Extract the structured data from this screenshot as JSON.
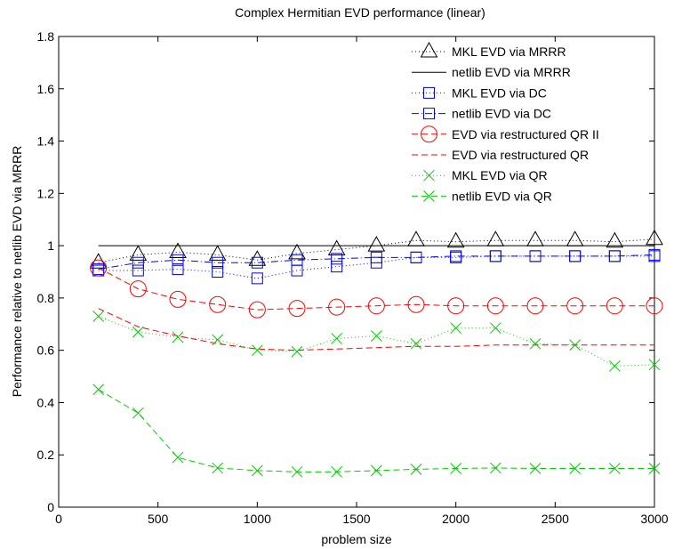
{
  "chart_data": {
    "type": "line",
    "title": "Complex Hermitian EVD performance (linear)",
    "xlabel": "problem size",
    "ylabel": "Performance relative to netlib EVD via MRRR",
    "xlim": [
      0,
      3000
    ],
    "ylim": [
      0,
      1.8
    ],
    "xticks": [
      0,
      500,
      1000,
      1500,
      2000,
      2500,
      3000
    ],
    "yticks": [
      0,
      0.2,
      0.4,
      0.6,
      0.8,
      1,
      1.2,
      1.4,
      1.6,
      1.8
    ],
    "xtick_labels": [
      "0",
      "500",
      "1000",
      "1500",
      "2000",
      "2500",
      "3000"
    ],
    "ytick_labels": [
      "0",
      "0.2",
      "0.4",
      "0.6",
      "0.8",
      "1",
      "1.2",
      "1.4",
      "1.6",
      "1.8"
    ],
    "grid": false,
    "legend_position": "top-right",
    "x": [
      200,
      400,
      600,
      800,
      1000,
      1200,
      1400,
      1600,
      1800,
      2000,
      2200,
      2400,
      2600,
      2800,
      3000
    ],
    "series": [
      {
        "name": "MKL EVD via MRRR",
        "color": "#000000",
        "line": "dotted",
        "marker": "triangle",
        "values": [
          0.935,
          0.965,
          0.975,
          0.965,
          0.945,
          0.97,
          0.985,
          1.0,
          1.02,
          1.015,
          1.02,
          1.02,
          1.02,
          1.015,
          1.025
        ]
      },
      {
        "name": "netlib EVD via MRRR",
        "color": "#000000",
        "line": "solid",
        "marker": "none",
        "values": [
          1,
          1,
          1,
          1,
          1,
          1,
          1,
          1,
          1,
          1,
          1,
          1,
          1,
          1,
          1
        ]
      },
      {
        "name": "MKL EVD via DC",
        "color": "#0000ff",
        "line": "dotted",
        "marker": "square",
        "values": [
          0.905,
          0.905,
          0.91,
          0.9,
          0.875,
          0.905,
          0.92,
          0.935,
          0.955,
          0.955,
          0.96,
          0.96,
          0.96,
          0.96,
          0.96
        ]
      },
      {
        "name": "netlib EVD via DC",
        "color": "#0000ff",
        "line": "dashdot",
        "marker": "square",
        "values": [
          0.91,
          0.935,
          0.945,
          0.935,
          0.935,
          0.945,
          0.95,
          0.955,
          0.955,
          0.96,
          0.96,
          0.96,
          0.96,
          0.96,
          0.965
        ]
      },
      {
        "name": "EVD via restructured QR II",
        "color": "#ff0000",
        "line": "dashed",
        "marker": "circle",
        "values": [
          0.915,
          0.835,
          0.795,
          0.775,
          0.755,
          0.76,
          0.765,
          0.77,
          0.775,
          0.77,
          0.77,
          0.77,
          0.77,
          0.77,
          0.77
        ]
      },
      {
        "name": "EVD via restructured QR",
        "color": "#ff0000",
        "line": "dashed",
        "marker": "none",
        "values": [
          0.76,
          0.69,
          0.655,
          0.625,
          0.605,
          0.6,
          0.605,
          0.61,
          0.615,
          0.615,
          0.62,
          0.62,
          0.62,
          0.62,
          0.62
        ]
      },
      {
        "name": "MKL EVD via QR",
        "color": "#00cc00",
        "line": "dotted",
        "marker": "x",
        "values": [
          0.73,
          0.67,
          0.65,
          0.64,
          0.6,
          0.595,
          0.645,
          0.655,
          0.625,
          0.685,
          0.685,
          0.625,
          0.62,
          0.54,
          0.545
        ]
      },
      {
        "name": "netlib EVD via QR",
        "color": "#00cc00",
        "line": "dashed",
        "marker": "x",
        "values": [
          0.45,
          0.36,
          0.19,
          0.15,
          0.14,
          0.135,
          0.135,
          0.14,
          0.145,
          0.148,
          0.15,
          0.148,
          0.148,
          0.148,
          0.148
        ]
      }
    ]
  }
}
